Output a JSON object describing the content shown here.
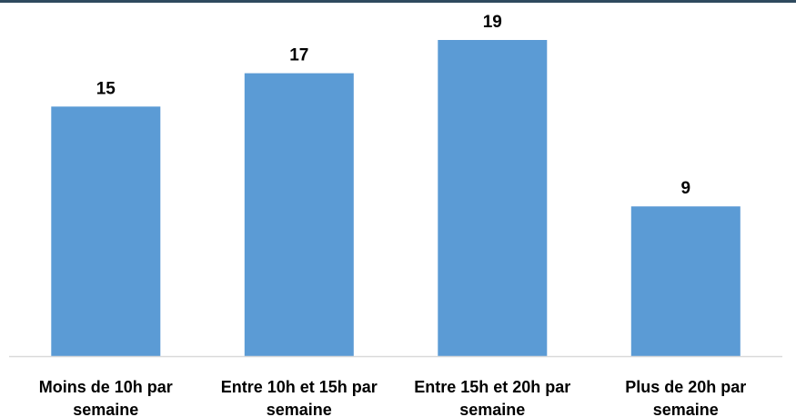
{
  "colors": {
    "bar": "#5B9BD5",
    "frame_top": "#2F4A5E",
    "axis": "#D9D9D9",
    "text": "#000000"
  },
  "chart_data": {
    "type": "bar",
    "title": "",
    "xlabel": "",
    "ylabel": "",
    "categories": [
      "Moins de 10h par semaine",
      "Entre 10h et 15h par semaine",
      "Entre 15h et 20h par semaine",
      "Plus de 20h par semaine"
    ],
    "category_lines": [
      [
        "Moins de 10h par",
        "semaine"
      ],
      [
        "Entre 10h et 15h par",
        "semaine"
      ],
      [
        "Entre 15h et 20h par",
        "semaine"
      ],
      [
        "Plus de 20h par",
        "semaine"
      ]
    ],
    "values": [
      15,
      17,
      19,
      9
    ],
    "data_labels": [
      "15",
      "17",
      "19",
      "9"
    ],
    "ylim": [
      0,
      19
    ],
    "grid": false,
    "legend": "none"
  }
}
